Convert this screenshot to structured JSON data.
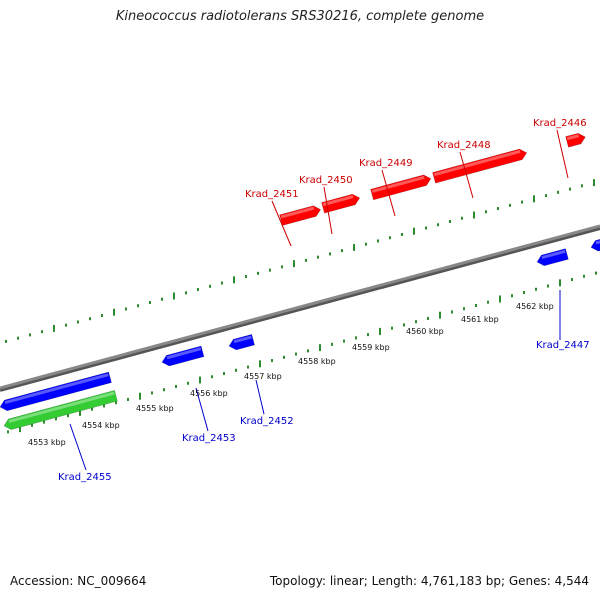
{
  "title": "Kineococcus radiotolerans SRS30216, complete genome",
  "footer": {
    "accession": "Accession: NC_009664",
    "topology": "Topology: linear; Length: 4,761,183 bp; Genes: 4,544"
  },
  "colors": {
    "forward_gene": "#ff0000",
    "reverse_gene": "#0000ff",
    "green_feature": "#33cc33",
    "axis": "#888888",
    "tick": "#2e8b2e",
    "forward_label": "#cc0000",
    "reverse_label": "#0000cc"
  },
  "scale_labels": [
    "4553 kbp",
    "4554 kbp",
    "4555 kbp",
    "4556 kbp",
    "4557 kbp",
    "4558 kbp",
    "4559 kbp",
    "4560 kbp",
    "4561 kbp",
    "4562 kbp"
  ],
  "genes": [
    {
      "name": "Krad_2446",
      "strand": "forward"
    },
    {
      "name": "Krad_2447",
      "strand": "reverse"
    },
    {
      "name": "Krad_2448",
      "strand": "forward"
    },
    {
      "name": "Krad_2449",
      "strand": "forward"
    },
    {
      "name": "Krad_2450",
      "strand": "forward"
    },
    {
      "name": "Krad_2451",
      "strand": "forward"
    },
    {
      "name": "Krad_2452",
      "strand": "reverse"
    },
    {
      "name": "Krad_2453",
      "strand": "reverse"
    },
    {
      "name": "Krad_2455",
      "strand": "reverse"
    }
  ],
  "unlabeled_features": [
    {
      "strand": "reverse"
    },
    {
      "strand": "reverse"
    },
    {
      "strand": "reverse"
    },
    {
      "strand": "green"
    }
  ]
}
